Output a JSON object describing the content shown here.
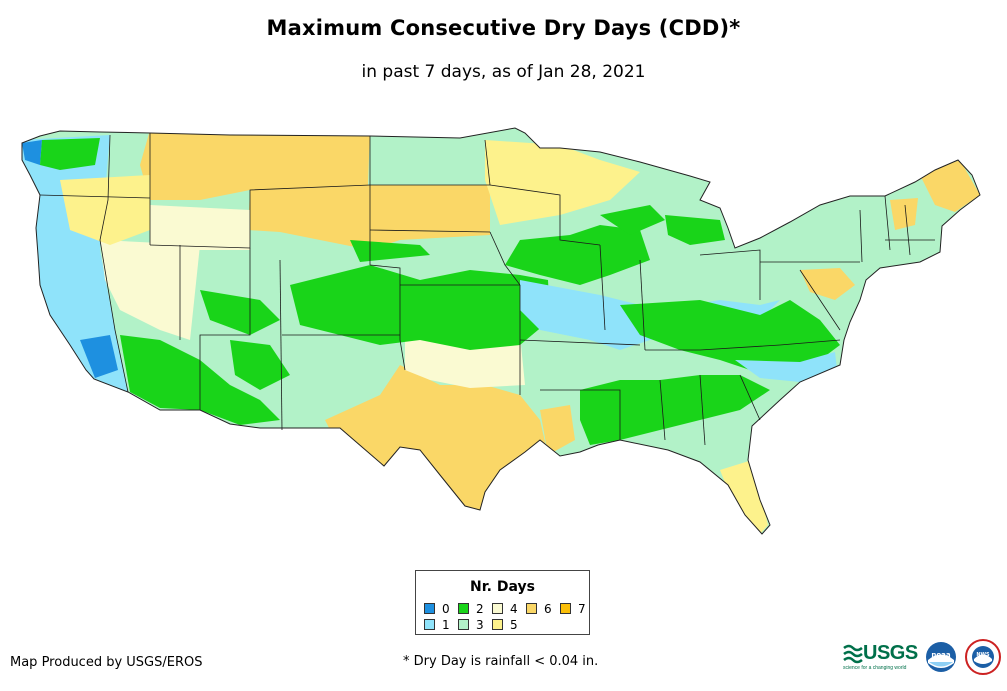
{
  "title": "Maximum Consecutive Dry Days (CDD)*",
  "subtitle": "in past 7 days, as of Jan 28, 2021",
  "legend": {
    "title": "Nr. Days",
    "items": [
      {
        "label": "0",
        "color": "#1e90e0"
      },
      {
        "label": "1",
        "color": "#8fe3fa"
      },
      {
        "label": "2",
        "color": "#19d419"
      },
      {
        "label": "3",
        "color": "#b2f2c8"
      },
      {
        "label": "4",
        "color": "#fafad2"
      },
      {
        "label": "5",
        "color": "#fdf28c"
      },
      {
        "label": "6",
        "color": "#fad767"
      },
      {
        "label": "7",
        "color": "#fbbf08"
      }
    ]
  },
  "footer": {
    "produced_by": "Map Produced by USGS/EROS",
    "note": "* Dry Day is rainfall < 0.04 in."
  },
  "logos": {
    "usgs": "USGS",
    "usgs_tagline": "science for a changing world",
    "noaa": "noaa",
    "nws": "NWS"
  }
}
